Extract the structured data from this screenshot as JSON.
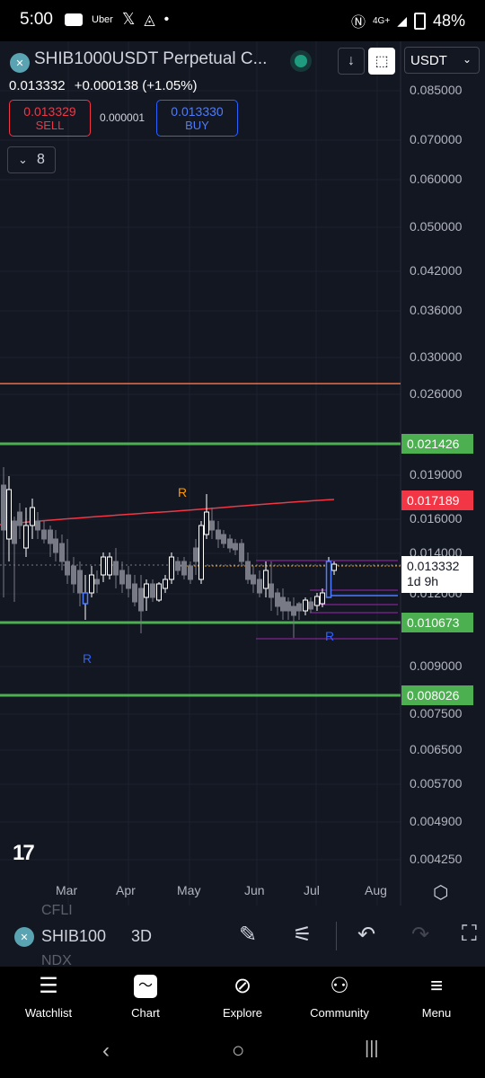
{
  "status_bar": {
    "time": "5:00",
    "network": "4G+",
    "battery": "48%"
  },
  "header": {
    "symbol_title": "SHIB1000USDT Perpetual C...",
    "currency": "USDT",
    "price": "0.013332",
    "change": "+0.000138 (+1.05%)"
  },
  "trade": {
    "sell_price": "0.013329",
    "sell_label": "SELL",
    "buy_price": "0.013330",
    "buy_label": "BUY",
    "spread": "0.000001",
    "indicator_count": "8"
  },
  "chart": {
    "y_ticks": [
      "0.085000",
      "0.070000",
      "0.060000",
      "0.050000",
      "0.042000",
      "0.036000",
      "0.030000",
      "0.026000",
      "0.019000",
      "0.016000",
      "0.014000",
      "0.012000",
      "0.009000",
      "0.007500",
      "0.006500",
      "0.005700",
      "0.004900",
      "0.004250"
    ],
    "x_ticks": [
      "Mar",
      "Apr",
      "May",
      "Jun",
      "Jul",
      "Aug"
    ],
    "price_tags": {
      "green_upper": "0.021426",
      "red": "0.017189",
      "green_mid": "0.010673",
      "green_lower": "0.008026",
      "current": "0.013332",
      "countdown": "1d 9h"
    },
    "markers": {
      "r_orange": "R",
      "r_blue_left": "R",
      "r_blue_right": "R"
    },
    "logo": "17"
  },
  "bottom_toolbar": {
    "symbol": "SHIB100",
    "timeframe": "3D",
    "ghost_top": "CFLI",
    "ghost_bottom": "NDX"
  },
  "nav": {
    "items": [
      "Watchlist",
      "Chart",
      "Explore",
      "Community",
      "Menu"
    ]
  },
  "colors": {
    "background": "#131722",
    "up": "#ffffff",
    "down": "#787b86",
    "green_line": "#4caf50",
    "red_line": "#f23645",
    "orange_line": "#e8704a",
    "purple_line": "#9c27b0"
  }
}
